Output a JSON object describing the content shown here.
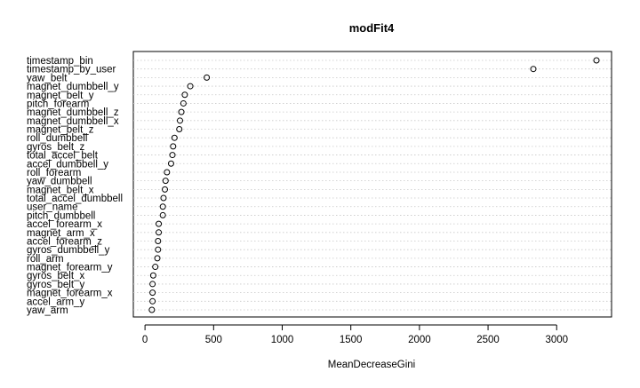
{
  "chart_data": {
    "type": "scatter",
    "subtype": "dotchart",
    "title": "modFit4",
    "xlabel": "MeanDecreaseGini",
    "xlim": [
      -85,
      3400
    ],
    "xticks": [
      0,
      500,
      1000,
      1500,
      2000,
      2500,
      3000
    ],
    "grid": "horizontal dotted lines per row",
    "categories": [
      "timestamp_bin",
      "timestamp_by_user",
      "yaw_belt",
      "magnet_dumbbell_y",
      "magnet_belt_y",
      "pitch_forearm",
      "magnet_dumbbell_z",
      "magnet_dumbbell_x",
      "magnet_belt_z",
      "roll_dumbbell",
      "gyros_belt_z",
      "total_accel_belt",
      "accel_dumbbell_y",
      "roll_forearm",
      "yaw_dumbbell",
      "magnet_belt_x",
      "total_accel_dumbbell",
      "user_name",
      "pitch_dumbbell",
      "accel_forearm_x",
      "magnet_arm_x",
      "accel_forearm_z",
      "gyros_dumbbell_y",
      "roll_arm",
      "magnet_forearm_y",
      "gyros_belt_x",
      "gyros_belt_y",
      "magnet_forearm_x",
      "accel_arm_y",
      "yaw_arm"
    ],
    "values": [
      3290,
      2830,
      450,
      330,
      290,
      280,
      265,
      255,
      250,
      215,
      205,
      200,
      190,
      160,
      150,
      145,
      135,
      130,
      130,
      100,
      100,
      95,
      95,
      90,
      75,
      60,
      55,
      55,
      55,
      50
    ]
  }
}
